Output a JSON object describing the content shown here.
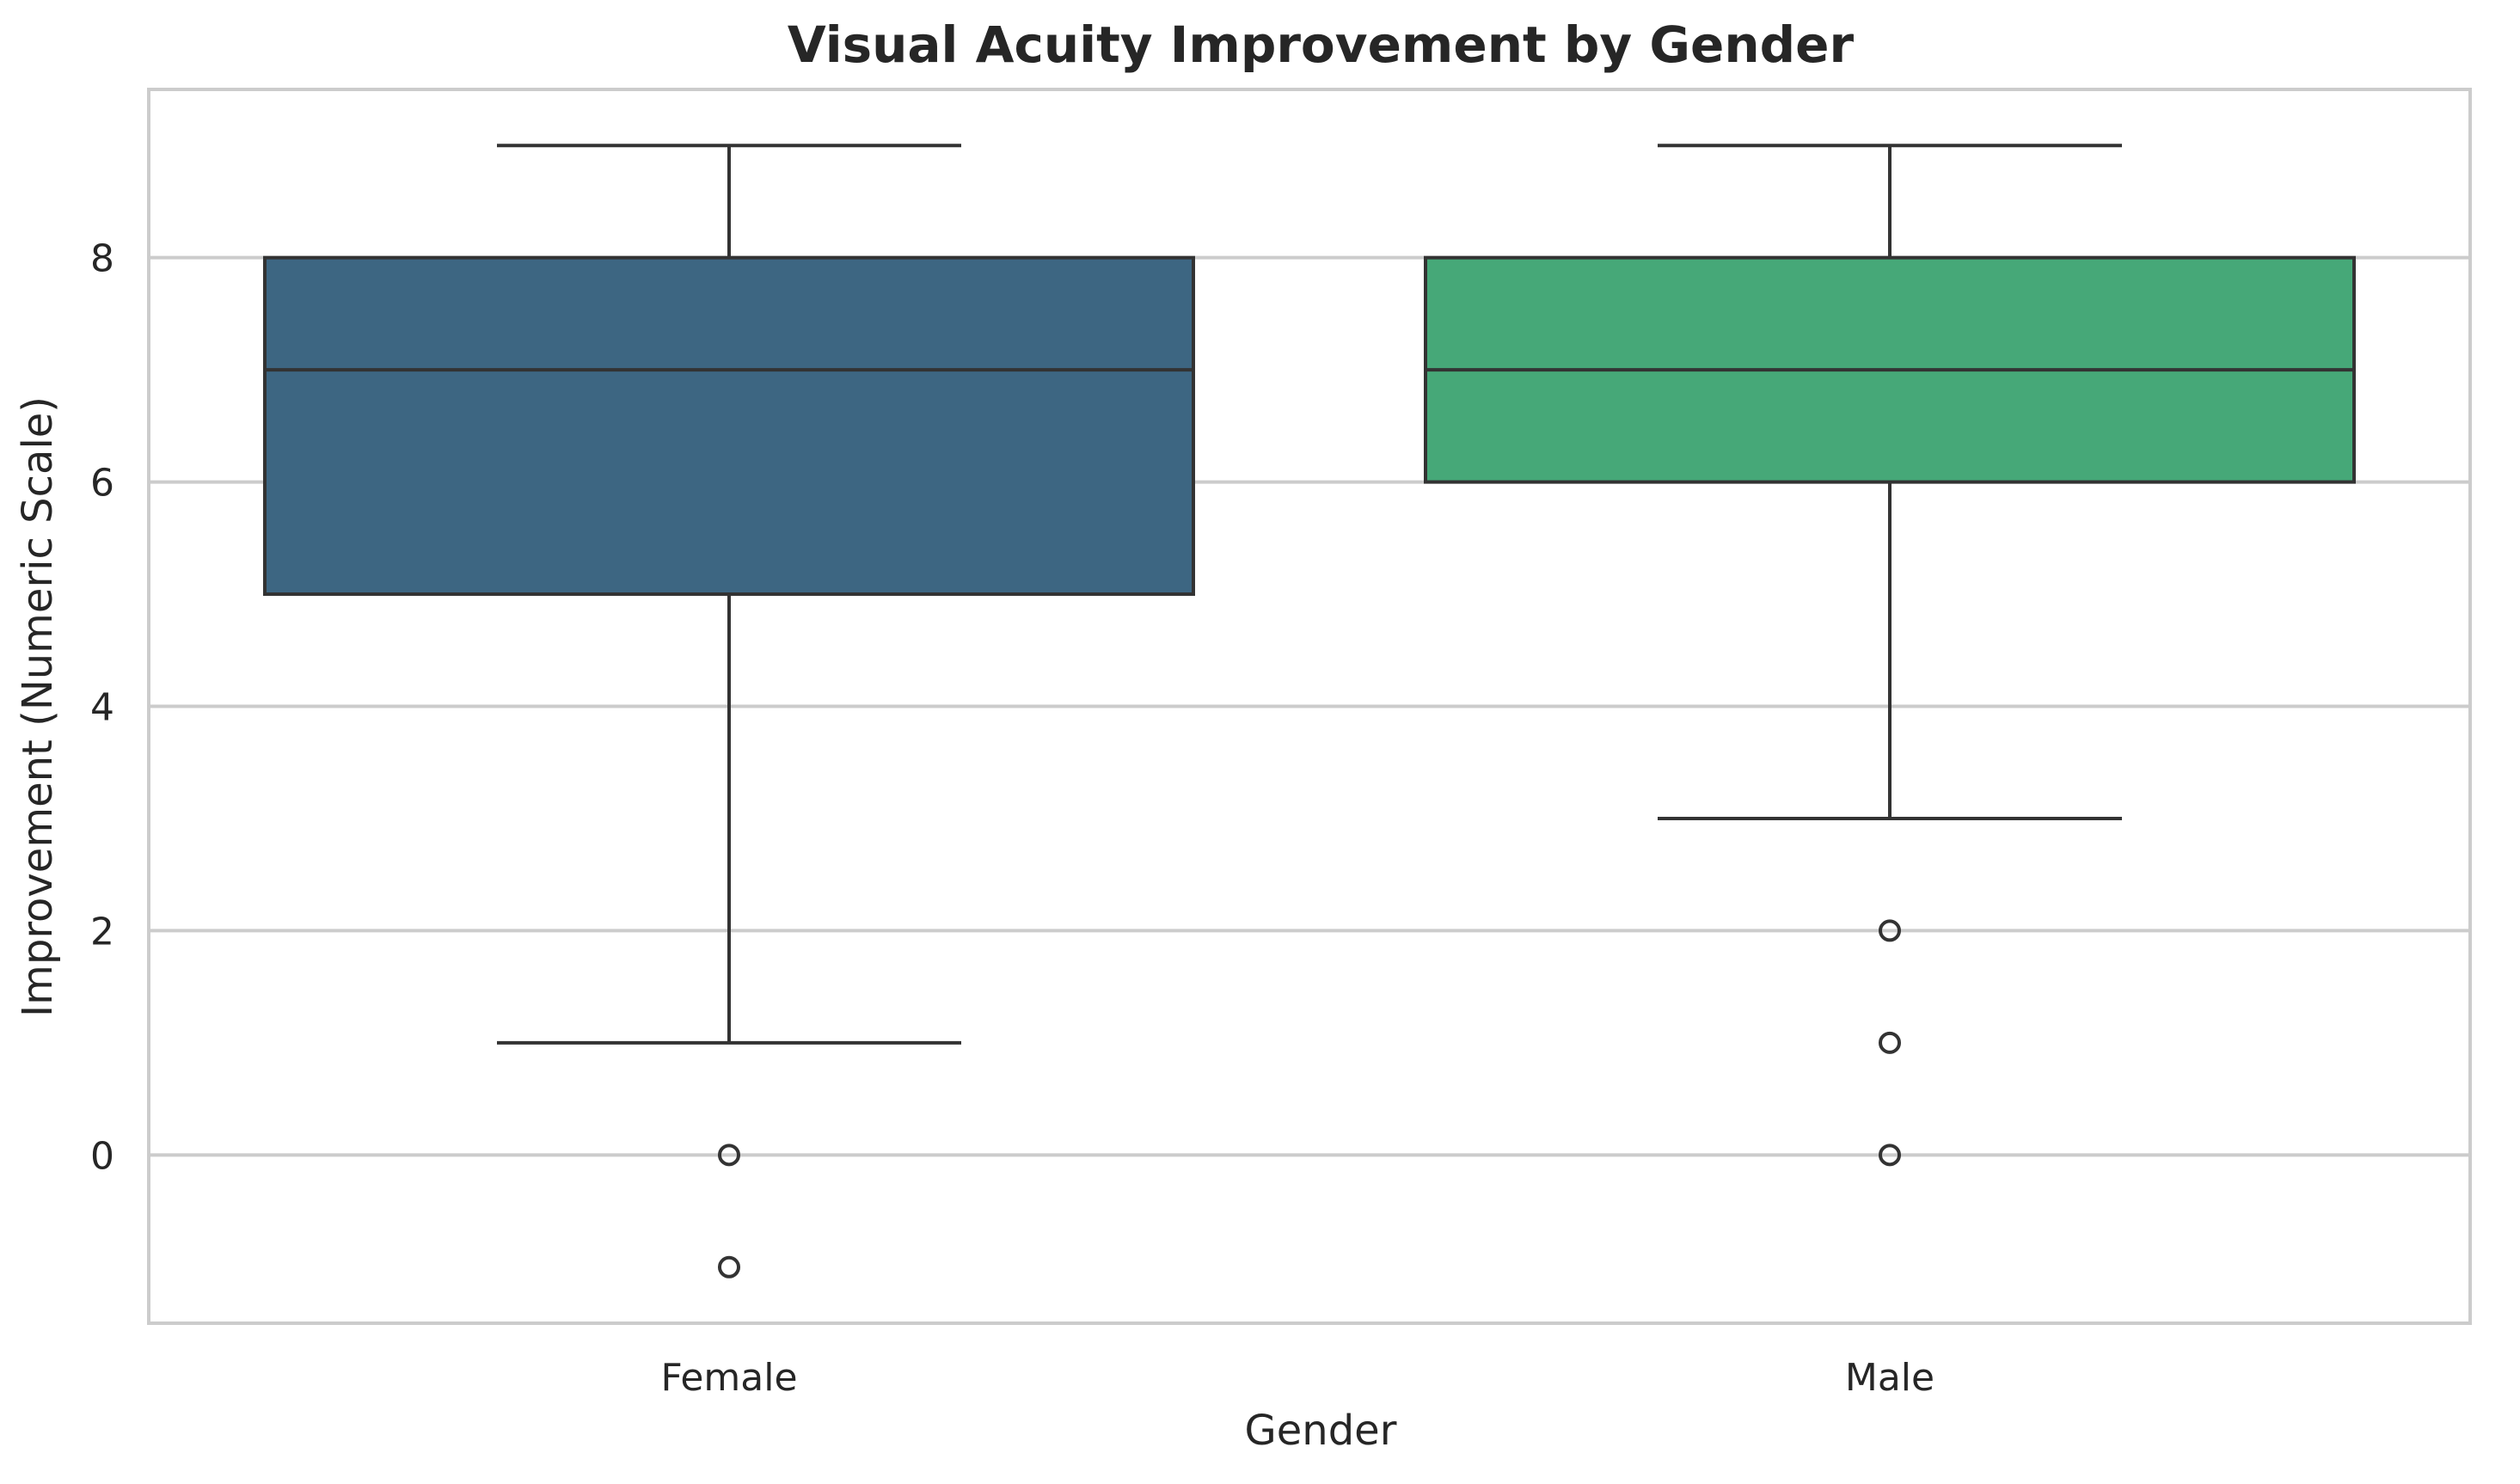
{
  "chart_data": {
    "type": "box",
    "title": "Visual Acuity Improvement by Gender",
    "xlabel": "Gender",
    "ylabel": "Improvement (Numeric Scale)",
    "ylim": [
      -1.5,
      9.5
    ],
    "yticks": [
      0,
      2,
      4,
      6,
      8
    ],
    "grid": "horizontal",
    "categories": [
      "Female",
      "Male"
    ],
    "boxes": [
      {
        "category": "Female",
        "whisker_low": 1,
        "q1": 5,
        "median": 7,
        "q3": 8,
        "whisker_high": 9,
        "outliers": [
          0,
          -1
        ],
        "color": "#3d6682"
      },
      {
        "category": "Male",
        "whisker_low": 3,
        "q1": 6,
        "median": 7,
        "q3": 8,
        "whisker_high": 9,
        "outliers": [
          2,
          1,
          0
        ],
        "color": "#46a878"
      }
    ]
  }
}
